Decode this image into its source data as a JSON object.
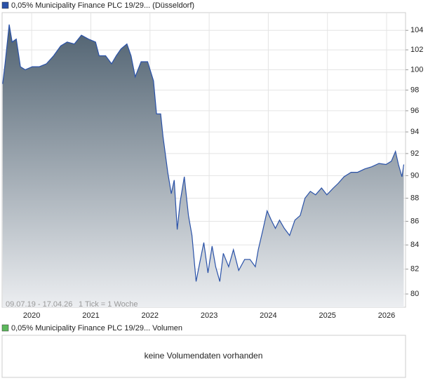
{
  "chart_data": {
    "type": "area",
    "annotation": "09.07.19 - 17.04.26",
    "tick_note": "1 Tick = 1 Woche",
    "log_scale": true,
    "grid": true,
    "fill_top": "#4f6170",
    "fill_bottom": "#eceef1",
    "x": [
      2019.51,
      2019.55,
      2019.62,
      2019.67,
      2019.74,
      2019.81,
      2019.89,
      2020.01,
      2020.13,
      2020.25,
      2020.37,
      2020.49,
      2020.6,
      2020.72,
      2020.84,
      2020.96,
      2021.08,
      2021.14,
      2021.25,
      2021.35,
      2021.43,
      2021.51,
      2021.61,
      2021.68,
      2021.75,
      2021.85,
      2021.96,
      2022.06,
      2022.11,
      2022.18,
      2022.22,
      2022.3,
      2022.36,
      2022.41,
      2022.46,
      2022.51,
      2022.58,
      2022.65,
      2022.71,
      2022.78,
      2022.84,
      2022.91,
      2022.98,
      2023.05,
      2023.11,
      2023.18,
      2023.24,
      2023.33,
      2023.41,
      2023.5,
      2023.6,
      2023.69,
      2023.78,
      2023.83,
      2023.91,
      2023.98,
      2024.05,
      2024.12,
      2024.19,
      2024.27,
      2024.36,
      2024.45,
      2024.54,
      2024.62,
      2024.71,
      2024.8,
      2024.9,
      2024.99,
      2025.1,
      2025.18,
      2025.28,
      2025.4,
      2025.51,
      2025.63,
      2025.75,
      2025.87,
      2025.99,
      2026.08,
      2026.15,
      2026.2,
      2026.26,
      2026.29
    ],
    "series": [
      {
        "name": "0,05% Municipality Finance PLC 19/29... (Düsseldorf)",
        "color": "#2a52a8",
        "values": [
          98.6,
          100.6,
          104.6,
          102.8,
          103.1,
          100.3,
          100.0,
          100.3,
          100.3,
          100.6,
          101.4,
          102.4,
          102.8,
          102.6,
          103.5,
          103.1,
          102.8,
          101.4,
          101.4,
          100.6,
          101.4,
          102.1,
          102.6,
          101.4,
          99.3,
          100.8,
          100.8,
          98.9,
          95.7,
          95.7,
          93.6,
          90.3,
          88.4,
          89.6,
          85.3,
          87.7,
          89.9,
          86.5,
          84.8,
          81.0,
          82.5,
          84.2,
          81.7,
          83.9,
          82.2,
          81.0,
          83.3,
          82.2,
          83.6,
          81.9,
          82.8,
          82.8,
          82.2,
          83.6,
          85.3,
          86.9,
          86.1,
          85.4,
          86.1,
          85.4,
          84.8,
          86.1,
          86.5,
          88.0,
          88.6,
          88.3,
          88.9,
          88.3,
          88.9,
          89.3,
          89.9,
          90.3,
          90.3,
          90.6,
          90.8,
          91.1,
          91.0,
          91.3,
          92.2,
          91.0,
          89.9,
          91.0
        ]
      }
    ],
    "xlim": [
      2019.5,
      2026.32
    ],
    "xticks": [
      2020,
      2021,
      2022,
      2023,
      2024,
      2025,
      2026
    ],
    "ylim": [
      78.95,
      105.85
    ],
    "yticks": [
      80,
      82,
      84,
      86,
      88,
      90,
      92,
      94,
      96,
      98,
      100,
      102,
      104
    ]
  },
  "volume_panel": {
    "legend": "0,05% Municipality Finance PLC 19/29... Volumen",
    "color": "#5cb85c",
    "message": "keine Volumendaten vorhanden"
  }
}
